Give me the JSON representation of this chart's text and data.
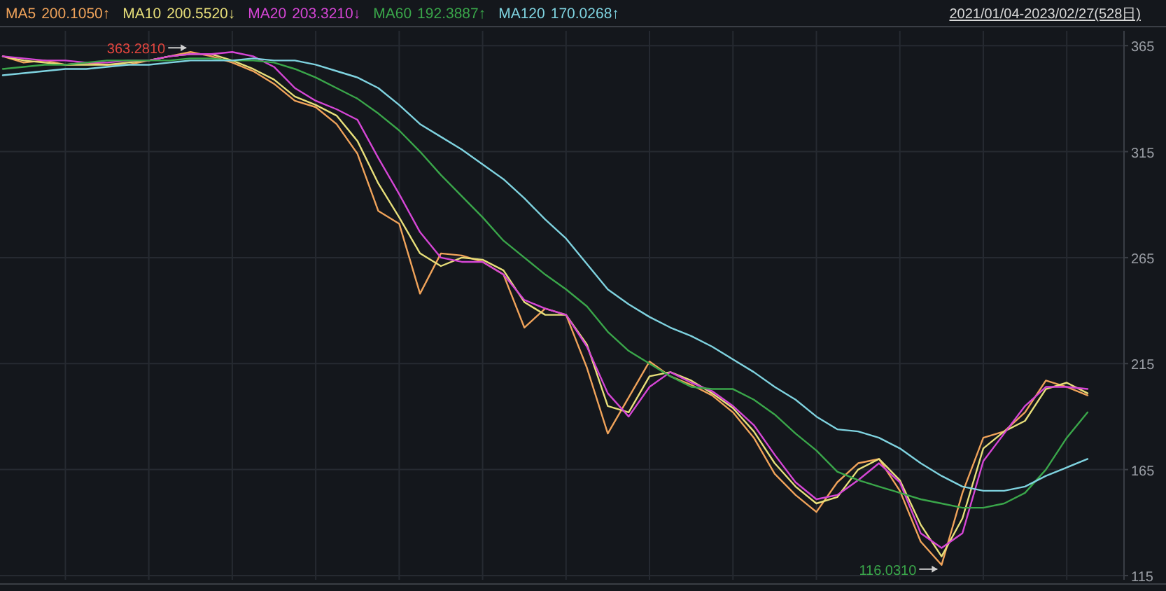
{
  "chart_data": {
    "type": "line",
    "subtitle": "2021/01/04-2023/02/27(528日)",
    "categories": [
      null,
      null,
      null,
      null,
      null,
      null,
      null,
      null,
      null,
      null,
      null,
      null,
      null,
      null,
      null,
      null,
      null,
      null,
      null,
      null,
      null,
      null,
      null,
      null,
      null,
      null,
      null,
      null,
      null,
      null,
      null,
      null,
      null,
      null,
      null,
      null,
      null,
      null,
      null,
      null,
      null,
      null,
      null,
      null,
      null,
      null,
      null,
      null,
      null,
      null,
      null,
      null,
      null
    ],
    "series": [
      {
        "name": "MA5",
        "color": "#f0a35a",
        "values": [
          360,
          357,
          358,
          356,
          357,
          356,
          356,
          358,
          360,
          362,
          360,
          357,
          353,
          347,
          339,
          336,
          328,
          314,
          287,
          281,
          248,
          267,
          266,
          263,
          257,
          232,
          241,
          238,
          213,
          182,
          199,
          216,
          209,
          205,
          200,
          192,
          180,
          163,
          153,
          145,
          159,
          168,
          170,
          155,
          131,
          120,
          154,
          180,
          183,
          192,
          207,
          204,
          200
        ]
      },
      {
        "name": "MA10",
        "color": "#e8df7a",
        "values": [
          360,
          358,
          357,
          356,
          356,
          356,
          357,
          358,
          360,
          361,
          361,
          358,
          354,
          349,
          341,
          337,
          332,
          320,
          300,
          284,
          267,
          261,
          265,
          264,
          259,
          244,
          238,
          238,
          224,
          195,
          192,
          209,
          211,
          207,
          201,
          194,
          183,
          168,
          157,
          149,
          152,
          165,
          170,
          160,
          139,
          124,
          142,
          175,
          183,
          188,
          203,
          206,
          201
        ]
      },
      {
        "name": "MA20",
        "color": "#d646d6",
        "values": [
          360,
          359,
          358,
          358,
          357,
          357,
          358,
          358,
          360,
          361,
          361,
          362,
          360,
          355,
          345,
          339,
          335,
          330,
          312,
          295,
          277,
          265,
          263,
          263,
          257,
          245,
          241,
          238,
          223,
          201,
          190,
          204,
          211,
          206,
          202,
          195,
          186,
          172,
          159,
          151,
          153,
          160,
          168,
          159,
          135,
          128,
          135,
          169,
          182,
          195,
          204,
          204,
          203
        ]
      },
      {
        "name": "MA60",
        "color": "#3aa64a",
        "values": [
          354,
          355,
          356,
          356,
          357,
          358,
          358,
          358,
          358,
          359,
          359,
          358,
          358,
          357,
          354,
          350,
          345,
          340,
          333,
          325,
          315,
          304,
          294,
          284,
          273,
          265,
          257,
          250,
          242,
          230,
          221,
          215,
          209,
          204,
          203,
          203,
          198,
          191,
          182,
          174,
          164,
          160,
          157,
          154,
          151,
          149,
          147,
          147,
          149,
          154,
          165,
          180,
          192
        ]
      },
      {
        "name": "MA120",
        "color": "#7fd3e0",
        "values": [
          351,
          352,
          353,
          354,
          354,
          355,
          356,
          356,
          357,
          358,
          358,
          358,
          359,
          358,
          358,
          356,
          353,
          350,
          345,
          337,
          328,
          322,
          316,
          309,
          302,
          293,
          283,
          274,
          262,
          250,
          243,
          237,
          232,
          228,
          223,
          217,
          211,
          204,
          198,
          190,
          184,
          183,
          180,
          175,
          168,
          162,
          157,
          155,
          155,
          157,
          162,
          166,
          170
        ]
      }
    ],
    "annotations": [
      "200.1050↑",
      "200.5520↓",
      "203.3210↓",
      "192.3887↑",
      "170.0268↑",
      "363.2810",
      "116.0310"
    ],
    "ylim": [
      113,
      372
    ],
    "yticks": [
      115,
      165,
      215,
      265,
      315,
      365
    ],
    "grid": true,
    "legend": "top left"
  }
}
